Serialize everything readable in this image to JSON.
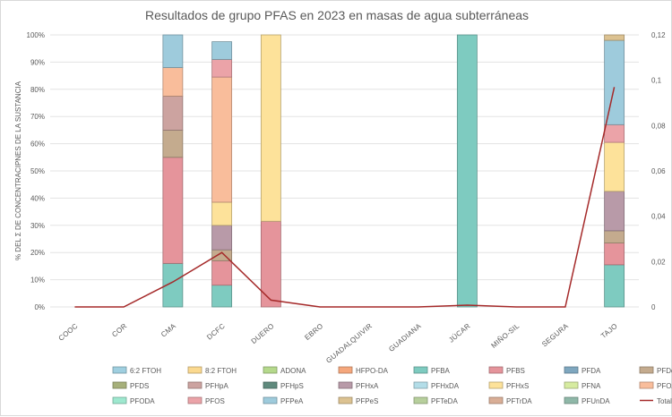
{
  "chart_data": {
    "type": "bar",
    "title": "Resultados de grupo PFAS en 2023 en masas de agua subterráneas",
    "ylabel": "% DEL Σ DE CONCENTRACIPNES DE LA SUSTANCIA",
    "ylim": [
      0,
      1
    ],
    "y2lim": [
      0,
      0.12
    ],
    "y_ticks": [
      "0%",
      "10%",
      "20%",
      "30%",
      "40%",
      "50%",
      "60%",
      "70%",
      "80%",
      "90%",
      "100%"
    ],
    "y2_ticks": [
      "0",
      "0,02",
      "0,04",
      "0,06",
      "0,08",
      "0,1",
      "0,12"
    ],
    "categories": [
      "COOC",
      "COR",
      "CMA",
      "DCFC",
      "DUERO",
      "EBRO",
      "GUADALQUIVIR",
      "GUADIANA",
      "JÚCAR",
      "MIÑO-SIL",
      "SEGURA",
      "TAJO"
    ],
    "series": [
      {
        "name": "6:2 FTOH",
        "color": "#9fcfe0",
        "values": [
          0,
          0,
          0,
          0,
          0,
          0,
          0,
          0,
          0,
          0,
          0,
          0
        ]
      },
      {
        "name": "8:2 FTOH",
        "color": "#fbd98f",
        "values": [
          0,
          0,
          0,
          0,
          0,
          0,
          0,
          0,
          0,
          0,
          0,
          0
        ]
      },
      {
        "name": "ADONA",
        "color": "#b5d98c",
        "values": [
          0,
          0,
          0,
          0,
          0,
          0,
          0,
          0,
          0,
          0,
          0,
          0
        ]
      },
      {
        "name": "HFPO-DA",
        "color": "#f5a77c",
        "values": [
          0,
          0,
          0,
          0,
          0,
          0,
          0,
          0,
          0,
          0,
          0,
          0
        ]
      },
      {
        "name": "PFBA",
        "color": "#7ecbc0",
        "values": [
          0,
          0,
          0.16,
          0.08,
          0,
          0,
          0,
          0,
          1.0,
          0,
          0,
          0.155
        ]
      },
      {
        "name": "PFBS",
        "color": "#e5949b",
        "values": [
          0,
          0,
          0.39,
          0.09,
          0.315,
          0,
          0,
          0,
          0,
          0,
          0,
          0.08
        ]
      },
      {
        "name": "PFDA",
        "color": "#7fa7bf",
        "values": [
          0,
          0,
          0,
          0,
          0,
          0,
          0,
          0,
          0,
          0,
          0,
          0
        ]
      },
      {
        "name": "PFDoDA",
        "color": "#c4ab8e",
        "values": [
          0,
          0,
          0.1,
          0.04,
          0,
          0,
          0,
          0,
          0,
          0,
          0,
          0.045
        ]
      },
      {
        "name": "PFDS",
        "color": "#a6b07a",
        "values": [
          0,
          0,
          0,
          0,
          0,
          0,
          0,
          0,
          0,
          0,
          0,
          0
        ]
      },
      {
        "name": "PFHpA",
        "color": "#cca3a0",
        "values": [
          0,
          0,
          0.125,
          0,
          0,
          0,
          0,
          0,
          0,
          0,
          0,
          0
        ]
      },
      {
        "name": "PFHpS",
        "color": "#5f8a7d",
        "values": [
          0,
          0,
          0,
          0,
          0,
          0,
          0,
          0,
          0,
          0,
          0,
          0
        ]
      },
      {
        "name": "PFHxA",
        "color": "#b89aa8",
        "values": [
          0,
          0,
          0,
          0.09,
          0,
          0,
          0,
          0,
          0,
          0,
          0,
          0.145
        ]
      },
      {
        "name": "PFHxDA",
        "color": "#b3dde8",
        "values": [
          0,
          0,
          0,
          0,
          0,
          0,
          0,
          0,
          0,
          0,
          0,
          0
        ]
      },
      {
        "name": "PFHxS",
        "color": "#fde29a",
        "values": [
          0,
          0,
          0,
          0.085,
          0.685,
          0,
          0,
          0,
          0,
          0,
          0,
          0.18
        ]
      },
      {
        "name": "PFNA",
        "color": "#d6eba0",
        "values": [
          0,
          0,
          0,
          0,
          0,
          0,
          0,
          0,
          0,
          0,
          0,
          0
        ]
      },
      {
        "name": "PFOA",
        "color": "#f9bd9b",
        "values": [
          0,
          0,
          0.105,
          0.46,
          0,
          0,
          0,
          0,
          0,
          0,
          0,
          0
        ]
      },
      {
        "name": "PFODA",
        "color": "#9ee8cf",
        "values": [
          0,
          0,
          0,
          0,
          0,
          0,
          0,
          0,
          0,
          0,
          0,
          0
        ]
      },
      {
        "name": "PFOS",
        "color": "#eba3a8",
        "values": [
          0,
          0,
          0,
          0.065,
          0,
          0,
          0,
          0,
          0,
          0,
          0,
          0.065
        ]
      },
      {
        "name": "PFPeA",
        "color": "#9ecbdc",
        "values": [
          0,
          0,
          0.12,
          0.065,
          0,
          0,
          0,
          0,
          0,
          0,
          0,
          0.31
        ]
      },
      {
        "name": "PFPeS",
        "color": "#dcc291",
        "values": [
          0,
          0,
          0,
          0,
          0,
          0,
          0,
          0,
          0,
          0,
          0,
          0.02
        ]
      },
      {
        "name": "PFTeDA",
        "color": "#b7cf9c",
        "values": [
          0,
          0,
          0,
          0,
          0,
          0,
          0,
          0,
          0,
          0,
          0,
          0
        ]
      },
      {
        "name": "PFTrDA",
        "color": "#d9ae96",
        "values": [
          0,
          0,
          0,
          0,
          0,
          0,
          0,
          0,
          0,
          0,
          0,
          0
        ]
      },
      {
        "name": "PFUnDA",
        "color": "#8fb8a8",
        "values": [
          0,
          0,
          0,
          0,
          0,
          0,
          0,
          0,
          0,
          0,
          0,
          0
        ]
      }
    ],
    "line": {
      "name": "Total",
      "color": "#a52a2a",
      "axis": "secondary",
      "values": [
        0,
        0,
        0.011,
        0.024,
        0.003,
        0,
        0,
        0,
        0.0008,
        0,
        0,
        0.097
      ]
    },
    "grid": true,
    "legend_position": "bottom"
  }
}
